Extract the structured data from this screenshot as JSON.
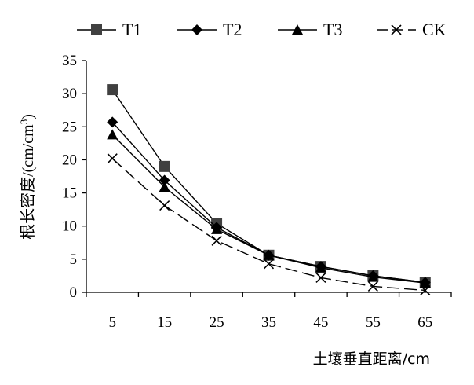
{
  "chart_data": {
    "type": "line",
    "title": "",
    "xlabel": "土壤垂直距离/cm",
    "ylabel": "根长密度/(cm/cm³)",
    "x": [
      5,
      15,
      25,
      35,
      45,
      55,
      65
    ],
    "xtick_labels": [
      "5",
      "15",
      "25",
      "35",
      "45",
      "55",
      "65"
    ],
    "ylim": [
      0,
      35
    ],
    "yticks": [
      0,
      5,
      10,
      15,
      20,
      25,
      30,
      35
    ],
    "ytick_labels": [
      "0",
      "5",
      "10",
      "15",
      "20",
      "25",
      "30",
      "35"
    ],
    "grid": false,
    "legend_position": "top",
    "series": [
      {
        "name": "T1",
        "marker": "square",
        "dash": "solid",
        "values": [
          30.6,
          19.0,
          10.4,
          5.6,
          3.9,
          2.5,
          1.5
        ]
      },
      {
        "name": "T2",
        "marker": "diamond",
        "dash": "solid",
        "values": [
          25.7,
          16.9,
          9.8,
          5.6,
          3.9,
          2.5,
          1.5
        ]
      },
      {
        "name": "T3",
        "marker": "triangle",
        "dash": "solid",
        "values": [
          23.8,
          15.9,
          9.5,
          5.6,
          3.7,
          2.3,
          1.4
        ]
      },
      {
        "name": "CK",
        "marker": "x",
        "dash": "dashed",
        "values": [
          20.2,
          13.1,
          7.8,
          4.3,
          2.2,
          0.9,
          0.3
        ]
      }
    ]
  }
}
